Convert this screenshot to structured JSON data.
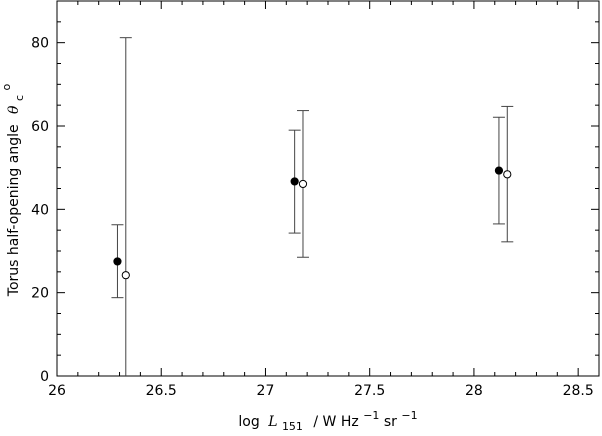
{
  "chart_data": {
    "type": "scatter",
    "title": "",
    "xlabel_parts": {
      "log": "log",
      "L": "L",
      "L_sub": "151",
      "unit_a": "/ W Hz",
      "unit_a_sup": "−1",
      "unit_b": " sr",
      "unit_b_sup": "−1"
    },
    "ylabel_parts": {
      "text": "Torus half-opening angle",
      "theta": "θ",
      "theta_sub": "c",
      "theta_sup": "o"
    },
    "xlim": [
      26.0,
      28.6
    ],
    "ylim": [
      0,
      90
    ],
    "x_ticks": [
      "26",
      "26.5",
      "27",
      "27.5",
      "28",
      "28.5"
    ],
    "y_ticks": [
      "0",
      "20",
      "40",
      "60",
      "80"
    ],
    "grid": false,
    "series": [
      {
        "marker": "filled-circle",
        "points": [
          {
            "x": 26.29,
            "y": 27.5,
            "ylow": 18.8,
            "yhigh": 36.3
          },
          {
            "x": 27.14,
            "y": 46.7,
            "ylow": 34.3,
            "yhigh": 59.0
          },
          {
            "x": 28.12,
            "y": 49.3,
            "ylow": 36.5,
            "yhigh": 62.1
          }
        ]
      },
      {
        "marker": "open-circle",
        "points": [
          {
            "x": 26.33,
            "y": 24.2,
            "ylow": 0.0,
            "yhigh": 81.2
          },
          {
            "x": 27.18,
            "y": 46.1,
            "ylow": 28.5,
            "yhigh": 63.7
          },
          {
            "x": 28.16,
            "y": 48.4,
            "ylow": 32.2,
            "yhigh": 64.7
          }
        ]
      }
    ]
  }
}
